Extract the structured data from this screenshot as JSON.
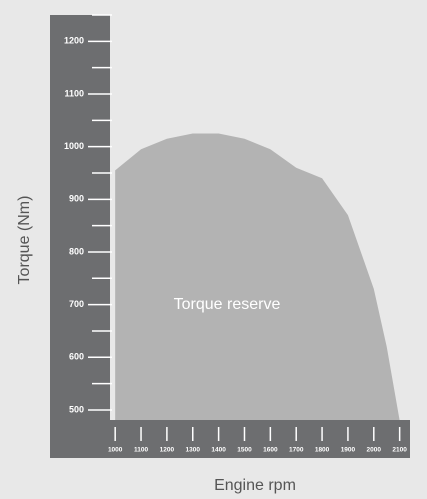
{
  "chart_data": {
    "type": "area",
    "ylabel": "Torque (Nm)",
    "xlabel": "Engine rpm",
    "annotation": "Torque reserve",
    "x": [
      1000,
      1100,
      1200,
      1300,
      1400,
      1500,
      1600,
      1700,
      1800,
      1900,
      2000,
      2050,
      2100
    ],
    "values": [
      955,
      995,
      1015,
      1025,
      1025,
      1015,
      995,
      960,
      940,
      870,
      730,
      620,
      480
    ],
    "color": "#b3b3b3",
    "xlim": [
      980,
      2140
    ],
    "xticks": [
      1000,
      1100,
      1200,
      1300,
      1400,
      1500,
      1600,
      1700,
      1800,
      1900,
      2000,
      2100
    ],
    "ylim": [
      480,
      1250
    ],
    "yticks": [
      500,
      600,
      700,
      800,
      900,
      1000,
      1100,
      1200
    ],
    "yminorticks": [
      550,
      650,
      750,
      850,
      950,
      1050,
      1150,
      1250
    ]
  }
}
